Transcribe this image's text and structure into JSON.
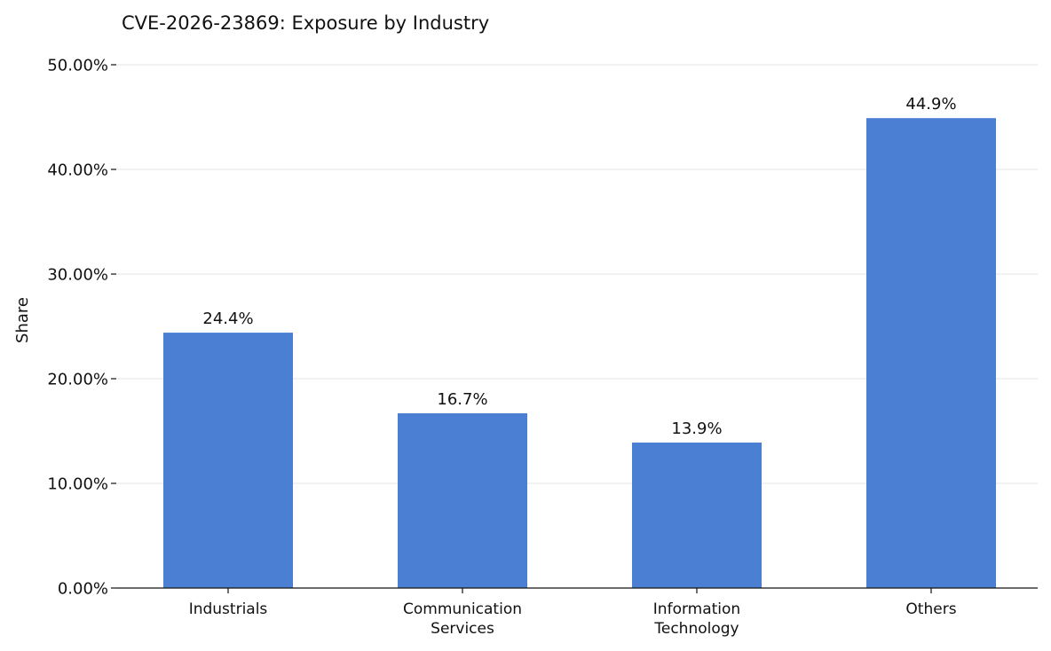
{
  "chart_data": {
    "type": "bar",
    "title": "CVE-2026-23869: Exposure by Industry",
    "xlabel": "",
    "ylabel": "Share",
    "categories": [
      [
        "Industrials"
      ],
      [
        "Communication",
        "Services"
      ],
      [
        "Information",
        "Technology"
      ],
      [
        "Others"
      ]
    ],
    "values": [
      24.4,
      16.7,
      13.9,
      44.9
    ],
    "value_labels": [
      "24.4%",
      "16.7%",
      "13.9%",
      "44.9%"
    ],
    "ylim": [
      0,
      50
    ],
    "yticks": [
      0,
      10,
      20,
      30,
      40,
      50
    ],
    "ytick_labels": [
      "0.00%",
      "10.00%",
      "20.00%",
      "30.00%",
      "40.00%",
      "50.00%"
    ],
    "grid": "horizontal",
    "bar_color": "#4a7fd4",
    "grid_color": "#e3e3e3",
    "axis_color": "#111111"
  }
}
